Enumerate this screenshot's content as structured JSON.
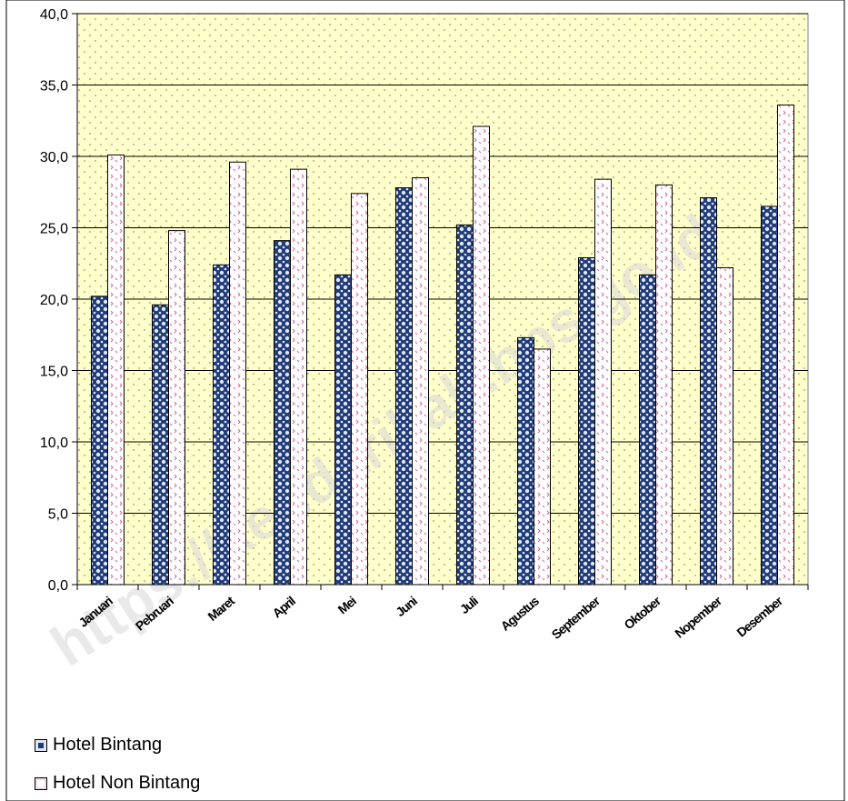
{
  "colors": {
    "plot_bg": "#ffffcc",
    "dot": "#9a9a6a",
    "bintang_dark": "#1f3a78",
    "bintang_light": "#e0e6f2",
    "nonbintang_bg": "#ffffff",
    "nonbintang_mark": "#cc6699",
    "gridline": "#000000"
  },
  "watermark": "https://kendarikab.bps.go.id",
  "chart_data": {
    "type": "bar",
    "categories": [
      "Januari",
      "Pebruari",
      "Maret",
      "April",
      "Mei",
      "Juni",
      "Juli",
      "Agustus",
      "September",
      "Oktober",
      "Nopember",
      "Desember"
    ],
    "series": [
      {
        "name": "Hotel Bintang",
        "values": [
          20.2,
          19.6,
          22.4,
          24.1,
          21.7,
          27.8,
          25.2,
          17.3,
          22.9,
          21.7,
          27.1,
          26.5
        ]
      },
      {
        "name": "Hotel Non Bintang",
        "values": [
          30.1,
          24.8,
          29.6,
          29.1,
          27.4,
          28.5,
          32.1,
          16.5,
          28.4,
          28.0,
          22.2,
          33.6
        ]
      }
    ],
    "yticks": [
      "0,0",
      "5,0",
      "10,0",
      "15,0",
      "20,0",
      "25,0",
      "30,0",
      "35,0",
      "40,0"
    ],
    "ylim": [
      0,
      40
    ],
    "grid": true,
    "legend_position": "bottom-left"
  }
}
